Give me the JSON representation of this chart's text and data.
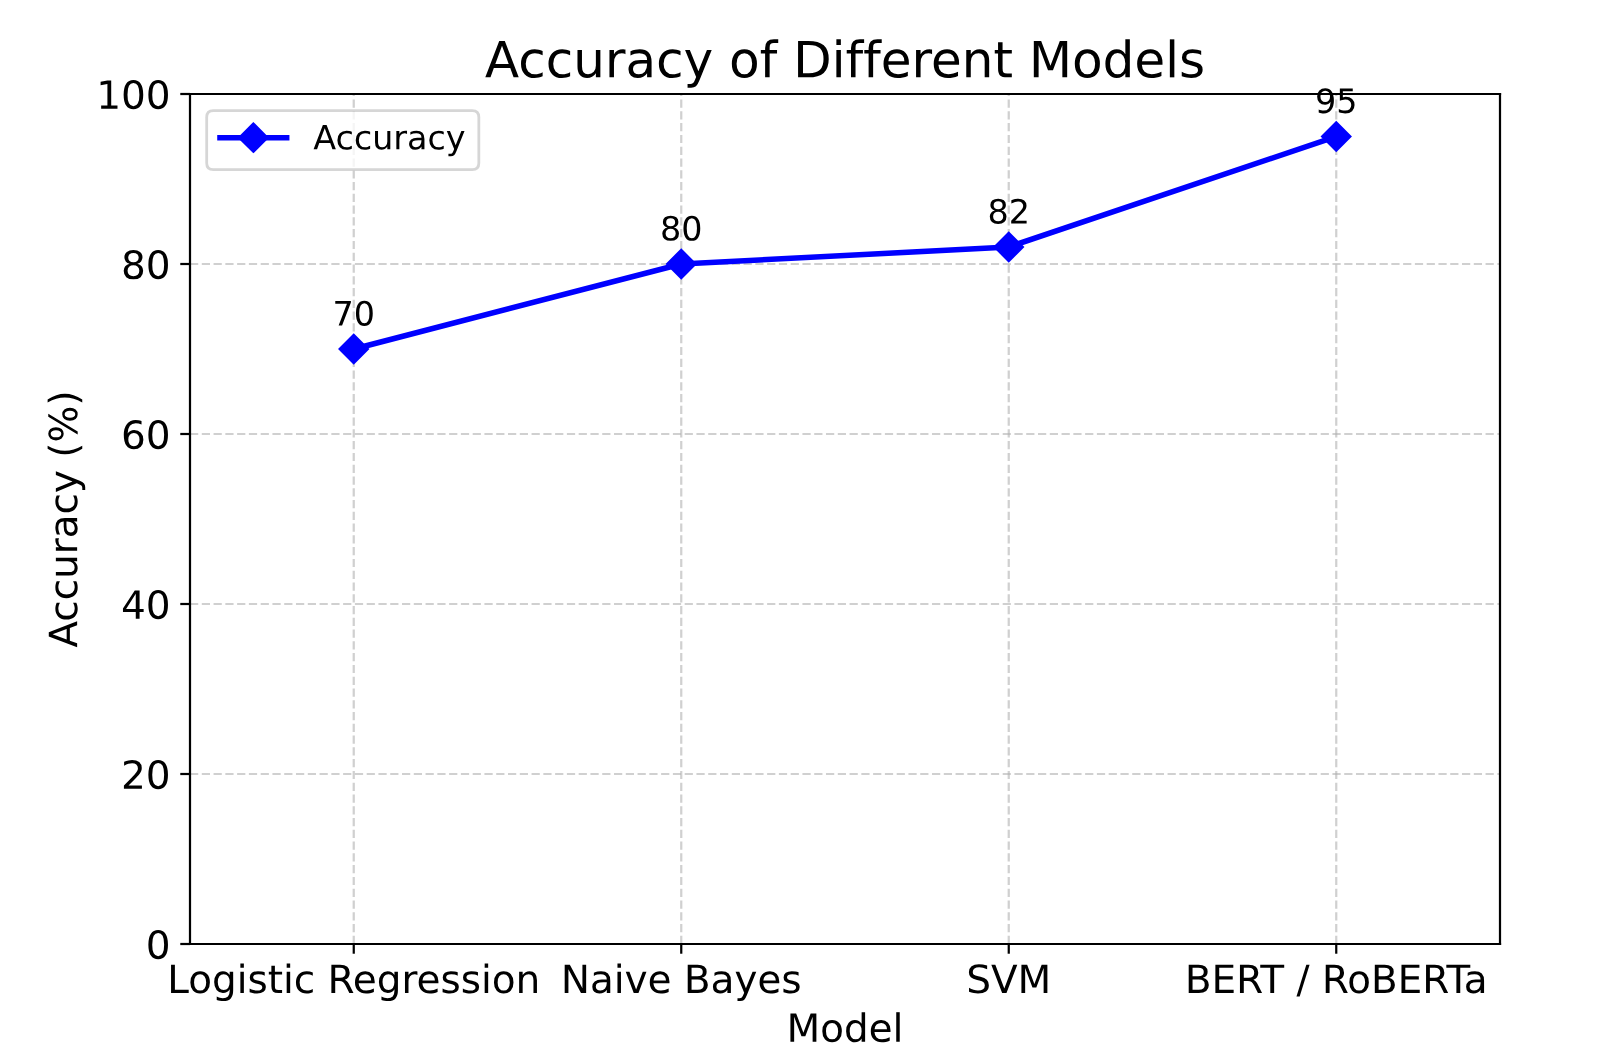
{
  "chart_data": {
    "type": "line",
    "title": "Accuracy of Different Models",
    "xlabel": "Model",
    "ylabel": "Accuracy (%)",
    "categories": [
      "Logistic Regression",
      "Naive Bayes",
      "SVM",
      "BERT / RoBERTa"
    ],
    "series": [
      {
        "name": "Accuracy",
        "color": "#0000ff",
        "values": [
          70,
          80,
          82,
          95
        ]
      }
    ],
    "ylim": [
      0,
      100
    ],
    "yticks": [
      0,
      20,
      40,
      60,
      80,
      100
    ],
    "grid": true,
    "legend": "top left",
    "marker": "diamond",
    "line_style": "solid",
    "data_labels": true
  }
}
